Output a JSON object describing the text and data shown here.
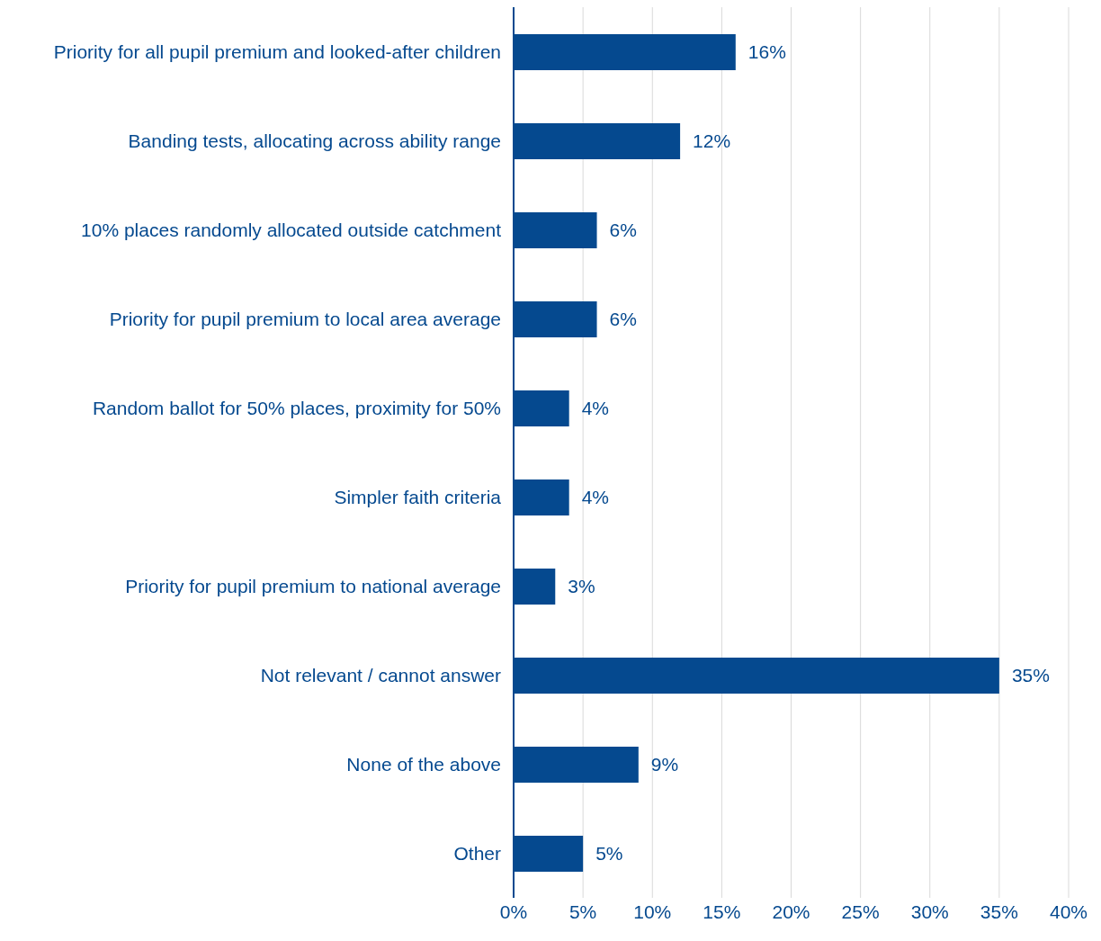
{
  "chart_data": {
    "type": "bar",
    "orientation": "horizontal",
    "categories": [
      "Priority for all pupil premium and looked-after children",
      "Banding tests, allocating across ability range",
      "10% places randomly allocated outside catchment",
      "Priority for pupil premium to local area average",
      "Random ballot for 50% places, proximity for 50%",
      "Simpler faith criteria",
      "Priority for pupil premium to national average",
      "Not relevant / cannot answer",
      "None of the above",
      "Other"
    ],
    "values": [
      16,
      12,
      6,
      6,
      4,
      4,
      3,
      35,
      9,
      5
    ],
    "value_labels": [
      "16%",
      "12%",
      "6%",
      "6%",
      "4%",
      "4%",
      "3%",
      "35%",
      "9%",
      "5%"
    ],
    "color": "#05498f",
    "xlim": [
      0,
      40
    ],
    "xticks": [
      {
        "value": 0,
        "label": "0%"
      },
      {
        "value": 5,
        "label": "5%"
      },
      {
        "value": 10,
        "label": "10%"
      },
      {
        "value": 15,
        "label": "15%"
      },
      {
        "value": 20,
        "label": "20%"
      },
      {
        "value": 25,
        "label": "25%"
      },
      {
        "value": 30,
        "label": "30%"
      },
      {
        "value": 35,
        "label": "35%"
      },
      {
        "value": 40,
        "label": "40%"
      }
    ],
    "grid": "x",
    "legend": false
  }
}
